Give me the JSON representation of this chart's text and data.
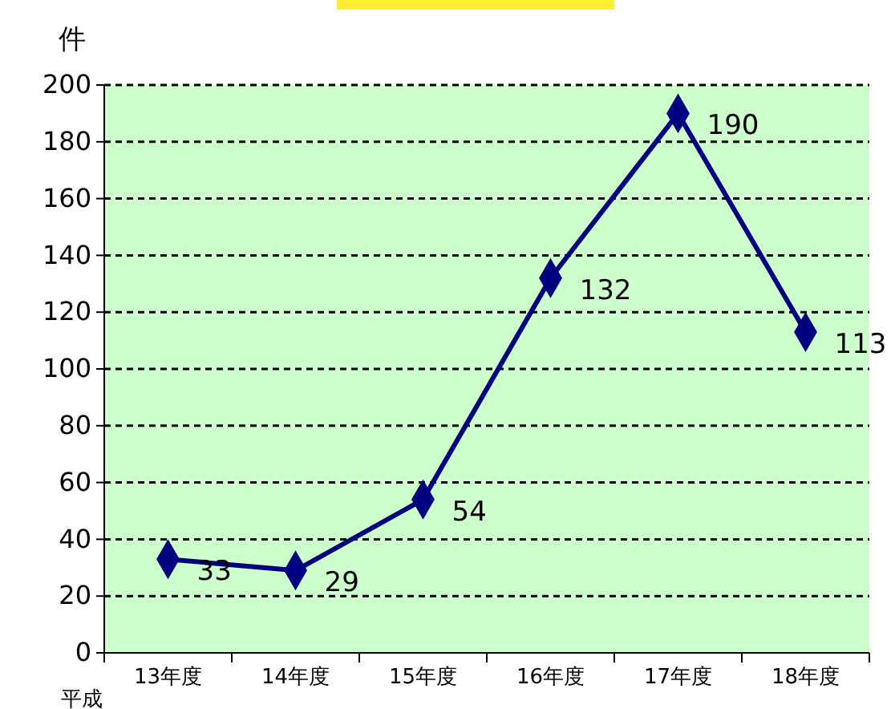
{
  "chart_data": {
    "type": "line",
    "ylabel": "件",
    "categories": [
      "13年度",
      "14年度",
      "15年度",
      "16年度",
      "17年度",
      "18年度"
    ],
    "series": [
      {
        "color": "#000080",
        "values": [
          33,
          29,
          54,
          132,
          190,
          113
        ]
      }
    ],
    "ylim": [
      0,
      200
    ],
    "yticks": [
      0,
      20,
      40,
      60,
      80,
      100,
      120,
      140,
      160,
      180,
      200
    ],
    "grid": "y",
    "marker": "diamond",
    "line_style": "solid",
    "data_labels": true,
    "annotations": [
      "平成"
    ]
  }
}
